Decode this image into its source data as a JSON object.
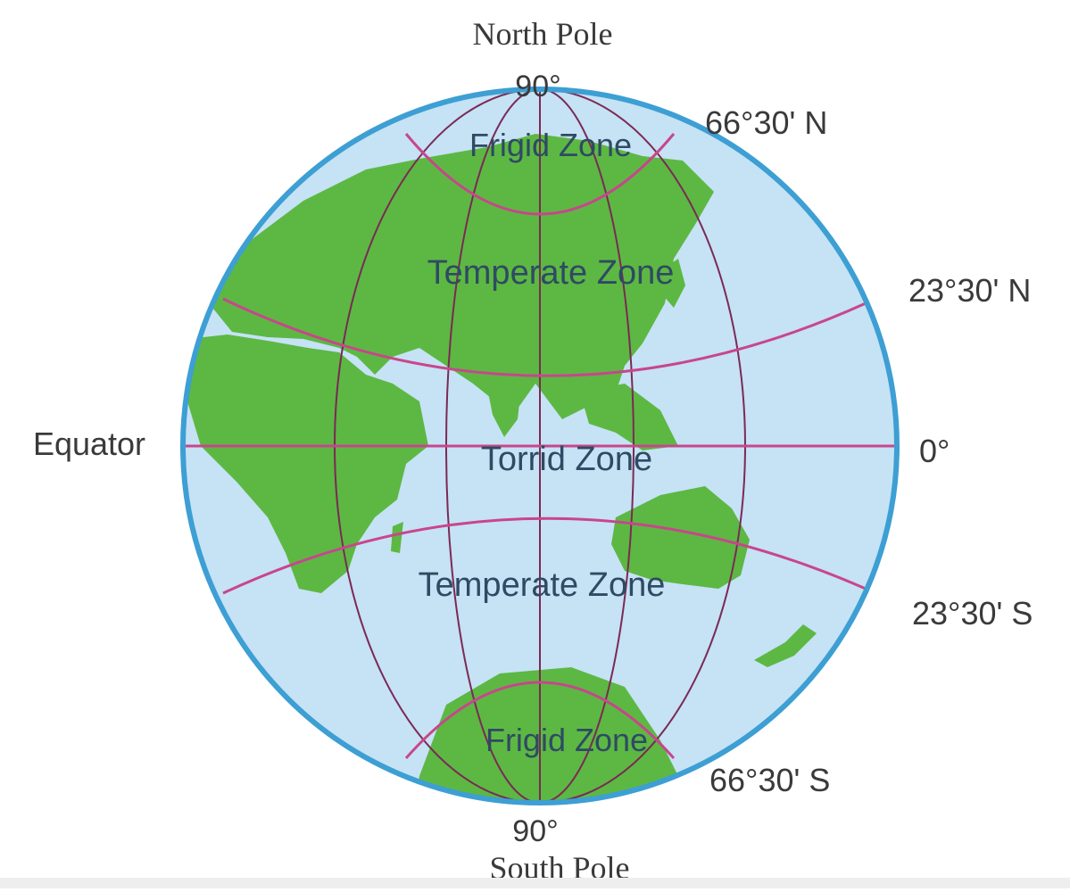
{
  "labels": {
    "north_pole": "North Pole",
    "north_90": "90°",
    "arctic_circle": "66°30' N",
    "tropic_cancer": "23°30' N",
    "equator": "Equator",
    "equator_deg": "0°",
    "tropic_capricorn": "23°30' S",
    "antarctic_circle": "66°30' S",
    "south_90": "90°",
    "south_pole": "South Pole"
  },
  "zones": {
    "frigid_north": "Frigid Zone",
    "temperate_north": "Temperate Zone",
    "torrid": "Torrid Zone",
    "temperate_south": "Temperate Zone",
    "frigid_south": "Frigid Zone"
  },
  "colors": {
    "ocean": "#c6e2f5",
    "land": "#5cb843",
    "globe_outline": "#3d9fd3",
    "parallel_line": "#c8468c",
    "meridian_line": "#7a2a55",
    "zone_text": "#2f4a63",
    "label_text": "#3a3a3a"
  }
}
